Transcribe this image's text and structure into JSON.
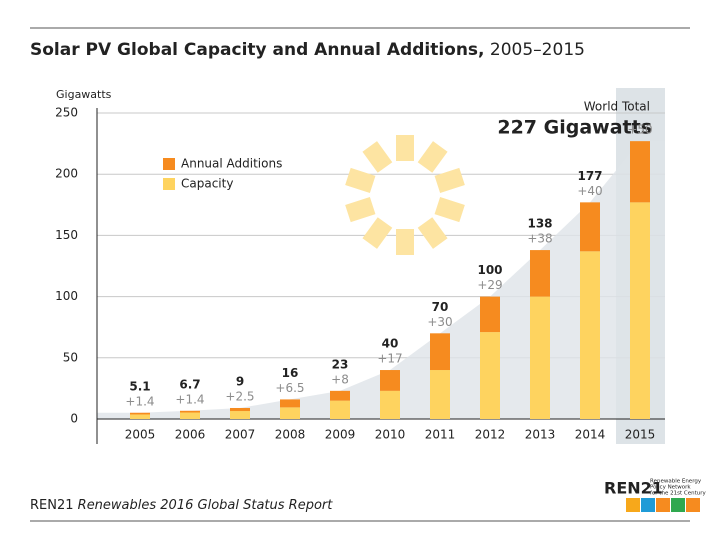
{
  "chart_data": {
    "type": "stacked_bar",
    "title": "Solar PV Global Capacity and Annual Additions,",
    "title_years": "2005–2015",
    "y_label": "Gigawatts",
    "categories": [
      "2005",
      "2006",
      "2007",
      "2008",
      "2009",
      "2010",
      "2011",
      "2012",
      "2013",
      "2014",
      "2015"
    ],
    "series": [
      {
        "name": "Capacity",
        "color": "#fed35f",
        "values": [
          3.7,
          5.3,
          6.5,
          9.5,
          15,
          23,
          40,
          71,
          100,
          137,
          177
        ]
      },
      {
        "name": "Annual Additions",
        "color": "#f68b1f",
        "values": [
          1.4,
          1.4,
          2.5,
          6.5,
          8,
          17,
          30,
          29,
          38,
          40,
          50
        ],
        "value_labels": [
          "+1.4",
          "+1.4",
          "+2.5",
          "+6.5",
          "+8",
          "+17",
          "+30",
          "+29",
          "+38",
          "+40",
          "+50"
        ]
      }
    ],
    "totals": [
      5.1,
      6.7,
      9,
      16,
      23,
      40,
      70,
      100,
      138,
      177,
      null
    ],
    "world_total_label": "World Total",
    "world_total": "227 Gigawatts",
    "ylim": [
      0,
      250
    ],
    "yticks": [
      0,
      50,
      100,
      150,
      200,
      250
    ],
    "grid": true,
    "legend": "upper-left",
    "source_org": "REN21",
    "source_title": "Renewables 2016 Global Status Report",
    "logo": "REN21",
    "logo_text": [
      "Renewable Energy",
      "Policy Network",
      "for the 21st Century"
    ]
  }
}
